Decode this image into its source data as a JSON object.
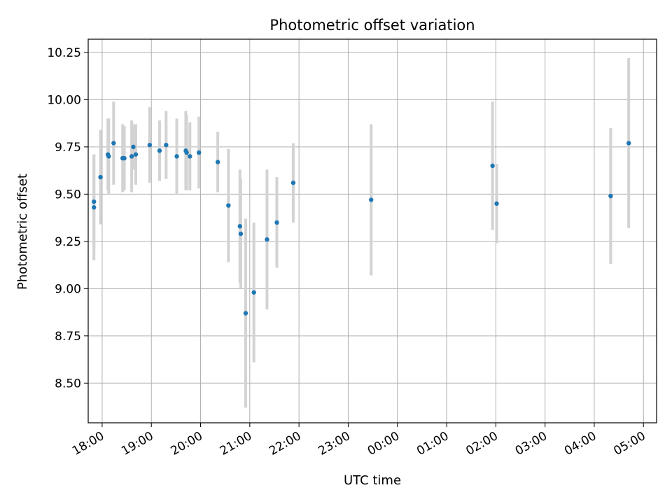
{
  "chart_data": {
    "type": "scatter",
    "title": "Photometric offset variation",
    "xlabel": "UTC time",
    "ylabel": "Photometric offset",
    "x_ticks": [
      "18:00",
      "19:00",
      "20:00",
      "21:00",
      "22:00",
      "23:00",
      "00:00",
      "01:00",
      "02:00",
      "03:00",
      "04:00",
      "05:00"
    ],
    "y_ticks": [
      "8.50",
      "8.75",
      "9.00",
      "9.25",
      "9.50",
      "9.75",
      "10.00",
      "10.25"
    ],
    "xlim": [
      "17:43",
      "05:16"
    ],
    "ylim": [
      8.29,
      10.32
    ],
    "grid": true,
    "legend": "none",
    "series": [
      {
        "color": "#1f77b4",
        "error_color": "#d3d3d3",
        "points": [
          {
            "x": "17:50",
            "y": 9.46,
            "err": 0.25
          },
          {
            "x": "17:50",
            "y": 9.43,
            "err": 0.28
          },
          {
            "x": "17:58",
            "y": 9.59,
            "err": 0.25
          },
          {
            "x": "18:07",
            "y": 9.71,
            "err": 0.19
          },
          {
            "x": "18:08",
            "y": 9.7,
            "err": 0.2
          },
          {
            "x": "18:14",
            "y": 9.77,
            "err": 0.22
          },
          {
            "x": "18:25",
            "y": 9.69,
            "err": 0.18
          },
          {
            "x": "18:27",
            "y": 9.69,
            "err": 0.17
          },
          {
            "x": "18:36",
            "y": 9.7,
            "err": 0.19
          },
          {
            "x": "18:38",
            "y": 9.75,
            "err": 0.12
          },
          {
            "x": "18:41",
            "y": 9.71,
            "err": 0.16
          },
          {
            "x": "18:58",
            "y": 9.76,
            "err": 0.2
          },
          {
            "x": "19:10",
            "y": 9.73,
            "err": 0.16
          },
          {
            "x": "19:18",
            "y": 9.76,
            "err": 0.18
          },
          {
            "x": "19:31",
            "y": 9.7,
            "err": 0.2
          },
          {
            "x": "19:42",
            "y": 9.73,
            "err": 0.21
          },
          {
            "x": "19:43",
            "y": 9.72,
            "err": 0.2
          },
          {
            "x": "19:47",
            "y": 9.7,
            "err": 0.18
          },
          {
            "x": "19:58",
            "y": 9.72,
            "err": 0.19
          },
          {
            "x": "20:21",
            "y": 9.67,
            "err": 0.16
          },
          {
            "x": "20:34",
            "y": 9.44,
            "err": 0.3
          },
          {
            "x": "20:48",
            "y": 9.33,
            "err": 0.3
          },
          {
            "x": "20:49",
            "y": 9.29,
            "err": 0.29
          },
          {
            "x": "20:55",
            "y": 8.87,
            "err": 0.5
          },
          {
            "x": "21:05",
            "y": 8.98,
            "err": 0.37
          },
          {
            "x": "21:21",
            "y": 9.26,
            "err": 0.37
          },
          {
            "x": "21:33",
            "y": 9.35,
            "err": 0.24
          },
          {
            "x": "21:53",
            "y": 9.56,
            "err": 0.21
          },
          {
            "x": "23:28",
            "y": 9.47,
            "err": 0.4
          },
          {
            "x": "01:56",
            "y": 9.65,
            "err": 0.34
          },
          {
            "x": "02:01",
            "y": 9.45,
            "err": 0.21
          },
          {
            "x": "04:20",
            "y": 9.49,
            "err": 0.36
          },
          {
            "x": "04:42",
            "y": 9.77,
            "err": 0.45
          }
        ]
      }
    ]
  }
}
